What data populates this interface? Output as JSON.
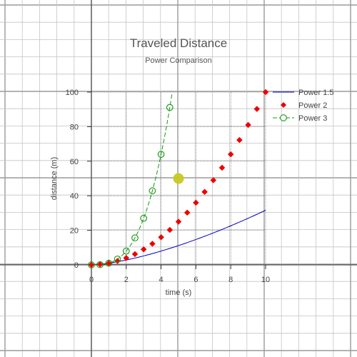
{
  "chart_data": {
    "type": "line",
    "title": "Traveled Distance",
    "subtitle": "Power Comparison",
    "xlabel": "time (s)",
    "ylabel": "distance (m)",
    "xlim": [
      0,
      10
    ],
    "ylim": [
      0,
      100
    ],
    "xticks": [
      "0",
      "2",
      "4",
      "6",
      "8",
      "10"
    ],
    "yticks": [
      "0",
      "20",
      "40",
      "60",
      "80",
      "100"
    ],
    "grid": true,
    "legend_position": "top-right",
    "series": [
      {
        "name": "Power 1.5",
        "style": "line",
        "color": "#0000bb",
        "x": [
          0,
          0.5,
          1,
          1.5,
          2,
          2.5,
          3,
          3.5,
          4,
          4.5,
          5,
          5.5,
          6,
          6.5,
          7,
          7.5,
          8,
          8.5,
          9,
          9.5,
          10
        ],
        "y": [
          0,
          0.35,
          1,
          1.84,
          2.83,
          3.95,
          5.2,
          6.55,
          8,
          9.55,
          11.18,
          12.9,
          14.7,
          16.57,
          18.52,
          20.54,
          22.63,
          24.78,
          27,
          29.28,
          31.62
        ]
      },
      {
        "name": "Power 2",
        "style": "markers",
        "marker": "diamond",
        "color": "#ee0000",
        "x": [
          0,
          0.5,
          1,
          1.5,
          2,
          2.5,
          3,
          3.5,
          4,
          4.5,
          5,
          5.5,
          6,
          6.5,
          7,
          7.5,
          8,
          8.5,
          9,
          9.5,
          10
        ],
        "y": [
          0,
          0.25,
          1,
          2.25,
          4,
          6.25,
          9,
          12.25,
          16,
          20.25,
          25,
          30.25,
          36,
          42.25,
          49,
          56.25,
          64,
          72.25,
          81,
          90.25,
          100
        ]
      },
      {
        "name": "Power 3",
        "style": "dashed-line-with-circles",
        "marker": "circle",
        "color": "#119911",
        "x": [
          0,
          0.5,
          1,
          1.5,
          2,
          2.5,
          3,
          3.5,
          4,
          4.5
        ],
        "y": [
          0,
          0.125,
          1,
          3.375,
          8,
          15.625,
          27,
          42.875,
          64,
          91.125
        ],
        "curve_extends_to": 4.64
      }
    ],
    "annotation_point": {
      "x": 5,
      "y": 50,
      "color": "#c8c820"
    }
  }
}
